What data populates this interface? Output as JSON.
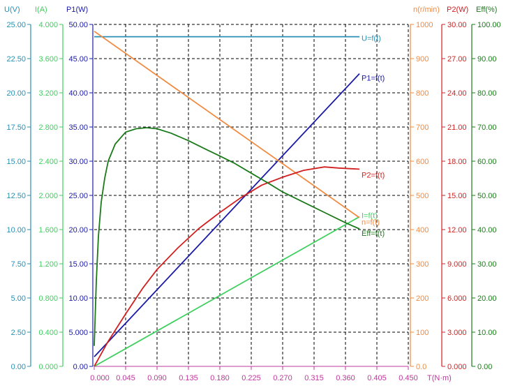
{
  "chart_data": {
    "type": "line",
    "title": "",
    "xlabel": "T(N·m)",
    "xlim": [
      0,
      0.45
    ],
    "x_ticks": [
      "0.000",
      "0.045",
      "0.090",
      "0.135",
      "0.180",
      "0.225",
      "0.270",
      "0.315",
      "0.360",
      "0.405",
      "0.450"
    ],
    "grid": true,
    "axes": [
      {
        "id": "U",
        "label": "U(V)",
        "color": "#2a8fb4",
        "range": [
          0,
          25
        ],
        "ticks": [
          "0.00",
          "2.50",
          "5.00",
          "7.50",
          "10.00",
          "12.50",
          "15.00",
          "17.50",
          "20.00",
          "22.50",
          "25.00"
        ]
      },
      {
        "id": "I",
        "label": "I(A)",
        "color": "#3fcf5f",
        "range": [
          0,
          4
        ],
        "ticks": [
          "0.000",
          "0.400",
          "0.800",
          "1.200",
          "1.600",
          "2.000",
          "2.400",
          "2.800",
          "3.200",
          "3.600",
          "4.000"
        ]
      },
      {
        "id": "P1",
        "label": "P1(W)",
        "color": "#1a1aa6",
        "range": [
          0,
          50
        ],
        "ticks": [
          "0.00",
          "5.000",
          "10.00",
          "15.00",
          "20.00",
          "25.00",
          "30.00",
          "35.00",
          "40.00",
          "45.00",
          "50.00"
        ]
      },
      {
        "id": "n",
        "label": "n(r/min)",
        "color": "#f08a40",
        "range": [
          0,
          1000
        ],
        "ticks": [
          "0.0",
          "100",
          "200",
          "300",
          "400",
          "500",
          "600",
          "700",
          "800",
          "900",
          "1000"
        ]
      },
      {
        "id": "P2",
        "label": "P2(W)",
        "color": "#d21f1f",
        "range": [
          0,
          30
        ],
        "ticks": [
          "0.000",
          "3.000",
          "6.000",
          "9.000",
          "12.00",
          "15.00",
          "18.00",
          "21.00",
          "24.00",
          "27.00",
          "30.00"
        ]
      },
      {
        "id": "Eff",
        "label": "Eff(%)",
        "color": "#1a7a1a",
        "range": [
          0,
          100
        ],
        "ticks": [
          "0.00",
          "10.00",
          "20.00",
          "30.00",
          "40.00",
          "50.00",
          "60.00",
          "70.00",
          "80.00",
          "90.00",
          "100.00"
        ]
      }
    ],
    "series": [
      {
        "name": "U=f(t)",
        "axis": "U",
        "color": "#2a8fb4",
        "x": [
          0,
          0.38
        ],
        "y": [
          24.1,
          24.1
        ]
      },
      {
        "name": "I=f(t)",
        "axis": "I",
        "color": "#3fcf5f",
        "x": [
          0,
          0.38
        ],
        "y": [
          0.0,
          1.75
        ]
      },
      {
        "name": "P1=f(t)",
        "axis": "P1",
        "color": "#1a1aa6",
        "x": [
          0,
          0.38
        ],
        "y": [
          1.4,
          42.8
        ]
      },
      {
        "name": "n=f(t)",
        "axis": "n",
        "color": "#f08a40",
        "x": [
          0,
          0.38
        ],
        "y": [
          980,
          435
        ]
      },
      {
        "name": "P2=f(t)",
        "axis": "P2",
        "color": "#d21f1f",
        "x": [
          0.0,
          0.02,
          0.045,
          0.07,
          0.09,
          0.12,
          0.15,
          0.18,
          0.21,
          0.24,
          0.27,
          0.3,
          0.33,
          0.35,
          0.38
        ],
        "y": [
          0.0,
          2.2,
          4.6,
          6.9,
          8.5,
          10.4,
          12.1,
          13.5,
          14.8,
          15.9,
          16.6,
          17.2,
          17.5,
          17.4,
          17.3
        ]
      },
      {
        "name": "Eff=f(t)",
        "axis": "Eff",
        "color": "#1a7a1a",
        "x": [
          0.0,
          0.003,
          0.006,
          0.01,
          0.015,
          0.02,
          0.03,
          0.045,
          0.06,
          0.075,
          0.09,
          0.11,
          0.135,
          0.16,
          0.18,
          0.2,
          0.225,
          0.25,
          0.27,
          0.3,
          0.33,
          0.36,
          0.38
        ],
        "y": [
          6,
          25,
          38,
          48,
          55,
          60,
          65,
          68.5,
          69.5,
          69.8,
          69.5,
          68.2,
          66,
          63.5,
          61.5,
          59.5,
          56.5,
          53.5,
          51,
          48,
          45,
          42,
          40.2
        ]
      }
    ]
  }
}
